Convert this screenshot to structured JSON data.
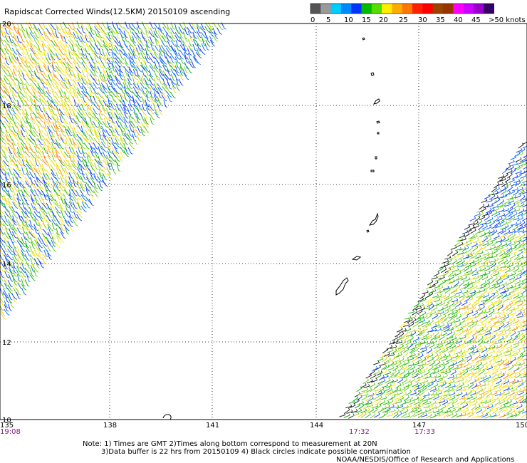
{
  "title": "Rapidscat Corrected Winds(12.5KM) 20150109 ascending",
  "colorbar": {
    "colors": [
      "#555555",
      "#999999",
      "#00ccff",
      "#0088ff",
      "#0033ff",
      "#00bb00",
      "#55dd00",
      "#ffee00",
      "#ffaa00",
      "#ff7700",
      "#ff2200",
      "#ff0000",
      "#994400",
      "#993300",
      "#ff00ff",
      "#cc00ff",
      "#9900cc",
      "#330066"
    ],
    "labels": [
      "0",
      "5",
      "10",
      "15",
      "20",
      "25",
      "30",
      "35",
      "40",
      "45",
      ">50 knots"
    ]
  },
  "map": {
    "lon_range": [
      135,
      150
    ],
    "lat_range": [
      10,
      20
    ],
    "lon_ticks": [
      "135",
      "138",
      "141",
      "144",
      "147",
      "150"
    ],
    "lat_ticks": [
      "20",
      "18",
      "16",
      "14",
      "12",
      "10"
    ],
    "time_labels": [
      {
        "lon": 135,
        "text": "19:08"
      },
      {
        "lon": 146,
        "text": "17:32"
      },
      {
        "lon": 148,
        "text": "17:33"
      }
    ]
  },
  "notes": {
    "line1": "Note: 1) Times are GMT 2)Times along bottom correspond to measurement at 20N",
    "line2": "3)Data buffer is 22 hrs from 20150109 4) Black circles indicate possible contamination",
    "credit": "NOAA/NESDIS/Office of Research and Applications"
  }
}
